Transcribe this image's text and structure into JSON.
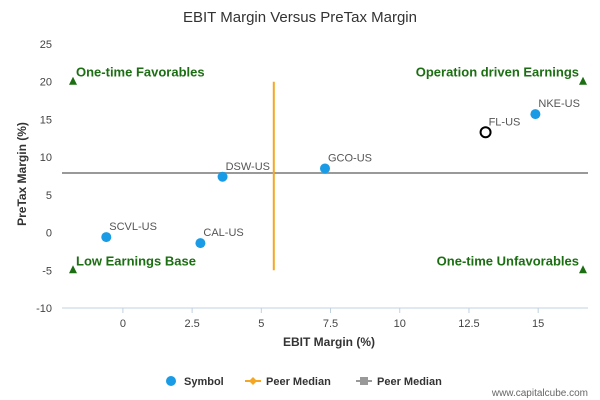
{
  "chart_data": {
    "type": "scatter",
    "title": "EBIT Margin Versus PreTax Margin",
    "xlabel": "EBIT Margin (%)",
    "ylabel": "PreTax Margin (%)",
    "xlim": [
      -2.2,
      16.8
    ],
    "ylim": [
      -10,
      25
    ],
    "x_ticks": [
      "0",
      "2.5",
      "5",
      "7.5",
      "10",
      "12.5",
      "15"
    ],
    "x_tick_values": [
      0,
      2.5,
      5,
      7.5,
      10,
      12.5,
      15
    ],
    "y_ticks": [
      "25",
      "20",
      "15",
      "10",
      "5",
      "0",
      "-5",
      "-10"
    ],
    "y_tick_values": [
      25,
      20,
      15,
      10,
      5,
      0,
      -5,
      -10
    ],
    "grid": false,
    "legend_position": "bottom",
    "series": [
      {
        "name": "Symbol",
        "color": "#1a9be6",
        "points": [
          {
            "label": "NKE-US",
            "x": 14.9,
            "y": 15.7,
            "style": "filled"
          },
          {
            "label": "FL-US",
            "x": 13.1,
            "y": 13.3,
            "style": "open"
          },
          {
            "label": "GCO-US",
            "x": 7.3,
            "y": 8.5,
            "style": "filled"
          },
          {
            "label": "DSW-US",
            "x": 3.6,
            "y": 7.4,
            "style": "filled"
          },
          {
            "label": "SCVL-US",
            "x": -0.6,
            "y": -0.6,
            "style": "filled"
          },
          {
            "label": "CAL-US",
            "x": 2.8,
            "y": -1.4,
            "style": "filled"
          }
        ]
      },
      {
        "name": "Peer Median",
        "color": "#f5a623",
        "orientation": "vertical",
        "x": 5.45,
        "y_range": [
          -5,
          20
        ]
      },
      {
        "name": "Peer Median",
        "color": "#999999",
        "orientation": "horizontal",
        "y": 7.9
      }
    ],
    "quadrant_labels": [
      {
        "text": "One-time Favorables",
        "x": -2.2,
        "y": 20,
        "align": "left"
      },
      {
        "text": "Operation driven Earnings",
        "x": 16.5,
        "y": 20,
        "align": "right"
      },
      {
        "text": "Low Earnings Base",
        "x": -2.2,
        "y": -5,
        "align": "left"
      },
      {
        "text": "One-time Unfavorables",
        "x": 16.5,
        "y": -5,
        "align": "right"
      }
    ],
    "quadrant_color": "#1b6e12"
  },
  "credit": "www.capitalcube.com"
}
